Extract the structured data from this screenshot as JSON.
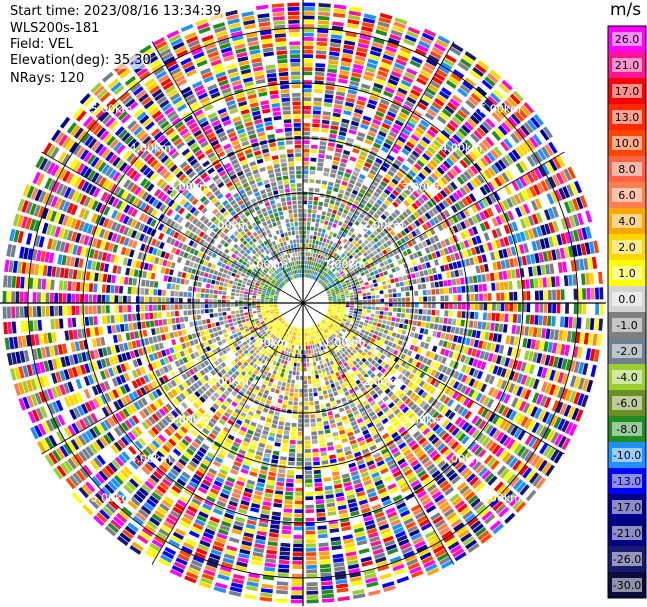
{
  "header": {
    "start_time": "Start time: 2023/08/16 13:34:39",
    "instrument": "WLS200s-181",
    "field": "Field: VEL",
    "elevation": "Elevation(deg): 35.30",
    "nrays": "NRays: 120"
  },
  "chart_data": {
    "type": "heatmap",
    "projection": "polar-ppi",
    "field": "VEL",
    "units": "m/s",
    "nrays": 120,
    "elevation_deg": 35.3,
    "range_rings": [
      {
        "label": "1.00km",
        "km": 1.0
      },
      {
        "label": "2.00km",
        "km": 2.0
      },
      {
        "label": "3.00km",
        "km": 3.0
      },
      {
        "label": "4.00km",
        "km": 4.0
      },
      {
        "label": "5.00km",
        "km": 5.0
      }
    ],
    "ring_label_text": [
      "1.00km",
      "1.00km",
      "1.00km",
      "1.00km",
      "2.00km",
      "2.00km",
      "2.00km",
      "2.00km",
      "3.00km",
      "3.00km",
      "3.00km",
      "3.00km",
      "4.00km",
      "4.00km",
      "4.00km",
      "4.00km",
      "5.00km",
      "5.00km",
      "5.00km",
      "5.00km"
    ],
    "spokes_deg": [
      0,
      30,
      60,
      90,
      120,
      150,
      180,
      210,
      240,
      270,
      300,
      330
    ],
    "colorbar": {
      "label": "m/s",
      "ticks": [
        "26.0",
        "21.0",
        "17.0",
        "13.0",
        "10.0",
        "8.0",
        "6.0",
        "4.0",
        "2.0",
        "1.0",
        "0.0",
        "-1.0",
        "-2.0",
        "-4.0",
        "-6.0",
        "-8.0",
        "-10.0",
        "-13.0",
        "-17.0",
        "-21.0",
        "-26.0",
        "-30.0"
      ],
      "colors": [
        "#ff00ff",
        "#ff1493",
        "#ff0000",
        "#ff2a00",
        "#ff4500",
        "#ff6347",
        "#ff7f50",
        "#ffa500",
        "#ffd700",
        "#ffff00",
        "#d3d3d3",
        "#808080",
        "#708090",
        "#9acd32",
        "#6b8e23",
        "#228b22",
        "#1e90ff",
        "#0000ff",
        "#00008b",
        "#000080",
        "#191970",
        "#0b0b3d"
      ]
    }
  }
}
